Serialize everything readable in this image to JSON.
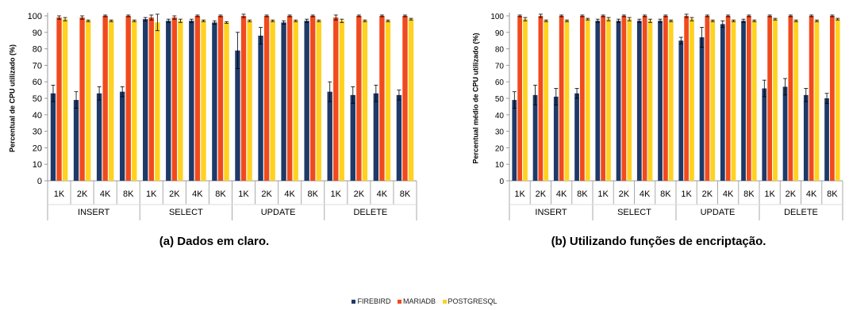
{
  "captions": {
    "a": "(a) Dados em claro.",
    "b": "(b) Utilizando funções de encriptação."
  },
  "legend": [
    {
      "name": "FIREBIRD",
      "color": "#1f3a68"
    },
    {
      "name": "MARIADB",
      "color": "#f04a1e"
    },
    {
      "name": "POSTGRESQL",
      "color": "#ffd21f"
    }
  ],
  "chart_data": [
    {
      "id": "a",
      "type": "bar",
      "ylabel": "Percentual de CPU utilizado (%)",
      "ylim": [
        0,
        100
      ],
      "yticks": [
        0,
        10,
        20,
        30,
        40,
        50,
        60,
        70,
        80,
        90,
        100
      ],
      "grid": false,
      "groups": [
        "INSERT",
        "SELECT",
        "UPDATE",
        "DELETE"
      ],
      "categories": [
        "1K",
        "2K",
        "4K",
        "8K",
        "1K",
        "2K",
        "4K",
        "8K",
        "1K",
        "2K",
        "4K",
        "8K",
        "1K",
        "2K",
        "4K",
        "8K"
      ],
      "series": [
        {
          "name": "FIREBIRD",
          "color": "#1f3a68",
          "values": [
            53,
            49,
            53,
            54,
            98,
            97,
            97,
            96,
            79,
            88,
            96,
            97,
            54,
            52,
            53,
            52
          ],
          "errors": [
            5,
            5,
            4,
            3,
            1,
            1,
            1,
            1,
            11,
            5,
            1,
            1,
            6,
            5,
            5,
            3
          ]
        },
        {
          "name": "MARIADB",
          "color": "#f04a1e",
          "values": [
            99,
            99,
            100,
            100,
            99,
            99,
            100,
            100,
            100,
            100,
            100,
            100,
            99,
            100,
            100,
            100
          ],
          "errors": [
            1,
            1,
            0.5,
            0.5,
            1.5,
            1,
            0.5,
            0.5,
            1,
            0.5,
            0.5,
            0.5,
            1.5,
            0.5,
            0.5,
            0.5
          ]
        },
        {
          "name": "POSTGRESQL",
          "color": "#ffd21f",
          "values": [
            98,
            97,
            97,
            97,
            96,
            97,
            97,
            96,
            97,
            97,
            97,
            97,
            97,
            97,
            97,
            98
          ],
          "errors": [
            1,
            0.5,
            0.5,
            0.5,
            5,
            1,
            0.5,
            0.5,
            0.5,
            0.5,
            0.5,
            0.5,
            1,
            0.5,
            0.5,
            0.5
          ]
        }
      ]
    },
    {
      "id": "b",
      "type": "bar",
      "ylabel": "Percentual médio de CPU utilizado (%)",
      "ylim": [
        0,
        100
      ],
      "yticks": [
        0,
        10,
        20,
        30,
        40,
        50,
        60,
        70,
        80,
        90,
        100
      ],
      "grid": false,
      "groups": [
        "INSERT",
        "SELECT",
        "UPDATE",
        "DELETE"
      ],
      "categories": [
        "1K",
        "2K",
        "4K",
        "8K",
        "1K",
        "2K",
        "4K",
        "8K",
        "1K",
        "2K",
        "4K",
        "8K",
        "1K",
        "2K",
        "4K",
        "8K"
      ],
      "series": [
        {
          "name": "FIREBIRD",
          "color": "#1f3a68",
          "values": [
            49,
            52,
            51,
            53,
            97,
            97,
            97,
            97,
            85,
            87,
            95,
            97,
            56,
            57,
            52,
            50
          ],
          "errors": [
            5,
            6,
            5,
            3,
            1,
            1,
            1,
            1,
            2,
            6,
            2,
            1,
            5,
            5,
            4,
            3
          ]
        },
        {
          "name": "MARIADB",
          "color": "#f04a1e",
          "values": [
            100,
            100,
            100,
            100,
            100,
            100,
            100,
            100,
            100,
            100,
            100,
            100,
            100,
            100,
            100,
            100
          ],
          "errors": [
            0.5,
            1,
            0.5,
            0.5,
            0.5,
            0.5,
            0.5,
            0.5,
            1,
            0.5,
            0.5,
            0.5,
            0.5,
            0.5,
            0.5,
            0.5
          ]
        },
        {
          "name": "POSTGRESQL",
          "color": "#ffd21f",
          "values": [
            98,
            97,
            97,
            98,
            98,
            98,
            97,
            97,
            98,
            97,
            97,
            97,
            98,
            97,
            97,
            98
          ],
          "errors": [
            1,
            0.5,
            0.5,
            0.5,
            1,
            1,
            1,
            0.5,
            1,
            0.5,
            0.5,
            0.5,
            0.5,
            0.5,
            0.5,
            0.5
          ]
        }
      ]
    }
  ]
}
